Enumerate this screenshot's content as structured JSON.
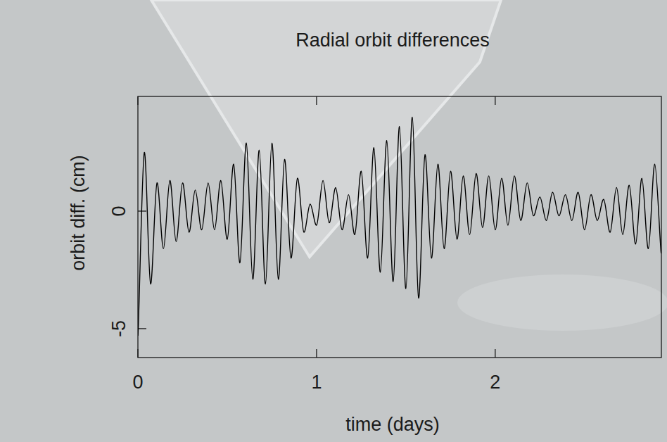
{
  "chart_data": {
    "type": "line",
    "title": "Radial orbit differences",
    "x_label": "time (days)",
    "y_label": "orbit diff. (cm)",
    "color": "#000000",
    "xlim": [
      0,
      2.93
    ],
    "xticks": [
      0,
      1,
      2
    ],
    "ylim": [
      -6.23,
      4.88
    ],
    "yticks": [
      -5,
      0
    ],
    "grid": false,
    "x": [
      0,
      0.036,
      0.071,
      0.107,
      0.143,
      0.179,
      0.214,
      0.25,
      0.286,
      0.321,
      0.357,
      0.393,
      0.429,
      0.464,
      0.5,
      0.536,
      0.571,
      0.607,
      0.643,
      0.679,
      0.714,
      0.75,
      0.786,
      0.821,
      0.857,
      0.893,
      0.929,
      0.964,
      1.0,
      1.036,
      1.071,
      1.107,
      1.143,
      1.179,
      1.214,
      1.25,
      1.286,
      1.321,
      1.357,
      1.393,
      1.429,
      1.464,
      1.5,
      1.536,
      1.571,
      1.607,
      1.643,
      1.679,
      1.714,
      1.75,
      1.786,
      1.821,
      1.857,
      1.893,
      1.929,
      1.964,
      2.0,
      2.036,
      2.071,
      2.107,
      2.143,
      2.179,
      2.214,
      2.25,
      2.286,
      2.321,
      2.357,
      2.393,
      2.429,
      2.464,
      2.5,
      2.536,
      2.571,
      2.607,
      2.643,
      2.679,
      2.714,
      2.75,
      2.786,
      2.821,
      2.857,
      2.893,
      2.929
    ],
    "values": [
      -5.3,
      2.5,
      -3.1,
      1.2,
      -1.6,
      1.3,
      -1.3,
      1.2,
      -0.9,
      0.9,
      -0.8,
      1.2,
      -0.8,
      1.3,
      -1.2,
      2.0,
      -2.2,
      2.9,
      -2.9,
      2.6,
      -3.1,
      2.9,
      -2.9,
      2.2,
      -2.0,
      1.4,
      -0.9,
      0.3,
      -0.6,
      1.3,
      -0.5,
      1.0,
      -0.8,
      0.7,
      -1.0,
      1.7,
      -2.0,
      2.7,
      -2.6,
      3.0,
      -3.0,
      3.6,
      -3.3,
      4.0,
      -3.7,
      2.4,
      -2.0,
      2.0,
      -1.6,
      1.7,
      -1.2,
      1.5,
      -1.0,
      1.6,
      -0.7,
      1.5,
      -0.8,
      1.4,
      -0.6,
      1.5,
      -0.4,
      1.2,
      -0.2,
      0.6,
      -0.4,
      0.8,
      -0.2,
      0.7,
      -0.4,
      0.8,
      -0.8,
      0.7,
      -0.4,
      0.5,
      -0.9,
      1.0,
      -1.0,
      1.1,
      -1.4,
      1.4,
      -1.6,
      2.0,
      -1.8
    ]
  }
}
